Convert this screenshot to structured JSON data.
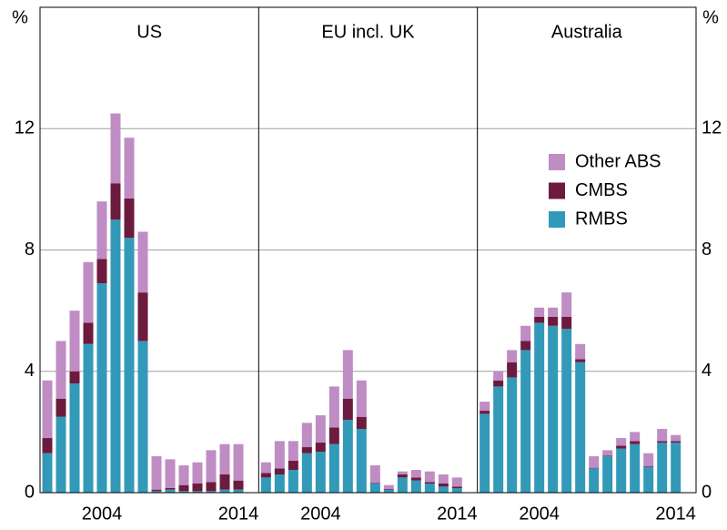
{
  "chart_data": [
    {
      "type": "bar",
      "stacked": true,
      "title": "US",
      "ylabel": "%",
      "categories": [
        null,
        null,
        null,
        null,
        "2004",
        null,
        null,
        null,
        null,
        null,
        null,
        null,
        null,
        null,
        "2014"
      ],
      "series": [
        {
          "name": "RMBS",
          "color": "#3399b8",
          "values": [
            1.3,
            2.5,
            3.6,
            4.9,
            6.9,
            9.0,
            8.4,
            5.0,
            0.05,
            0.1,
            0.05,
            0.05,
            0.05,
            0.1,
            0.1
          ]
        },
        {
          "name": "CMBS",
          "color": "#6d1a3f",
          "values": [
            0.5,
            0.6,
            0.4,
            0.7,
            0.8,
            1.2,
            1.3,
            1.6,
            0.05,
            0.05,
            0.2,
            0.25,
            0.3,
            0.5,
            0.3
          ]
        },
        {
          "name": "Other ABS",
          "color": "#bf8cc4",
          "values": [
            1.9,
            1.9,
            2.0,
            2.0,
            1.9,
            2.3,
            2.0,
            2.0,
            1.1,
            0.95,
            0.65,
            0.7,
            1.05,
            1.0,
            1.2
          ]
        }
      ],
      "ylim": [
        0,
        16
      ],
      "yticks": [
        0,
        4,
        8,
        12
      ],
      "grid": true
    },
    {
      "type": "bar",
      "stacked": true,
      "title": "EU incl. UK",
      "categories": [
        null,
        null,
        null,
        null,
        "2004",
        null,
        null,
        null,
        null,
        null,
        null,
        null,
        null,
        null,
        "2014"
      ],
      "series": [
        {
          "name": "RMBS",
          "color": "#3399b8",
          "values": [
            0.5,
            0.6,
            0.75,
            1.3,
            1.35,
            1.6,
            2.4,
            2.1,
            0.3,
            0.1,
            0.5,
            0.4,
            0.3,
            0.2,
            0.15
          ]
        },
        {
          "name": "CMBS",
          "color": "#6d1a3f",
          "values": [
            0.15,
            0.2,
            0.3,
            0.2,
            0.3,
            0.55,
            0.7,
            0.4,
            0.02,
            0.02,
            0.1,
            0.1,
            0.05,
            0.1,
            0.05
          ]
        },
        {
          "name": "Other ABS",
          "color": "#bf8cc4",
          "values": [
            0.35,
            0.9,
            0.65,
            0.8,
            0.9,
            1.35,
            1.6,
            1.2,
            0.58,
            0.13,
            0.1,
            0.25,
            0.35,
            0.3,
            0.3
          ]
        }
      ],
      "ylim": [
        0,
        16
      ],
      "yticks": [
        0,
        4,
        8,
        12
      ],
      "grid": true
    },
    {
      "type": "bar",
      "stacked": true,
      "title": "Australia",
      "ylabel": "%",
      "legend": "upper right",
      "categories": [
        null,
        null,
        null,
        null,
        "2004",
        null,
        null,
        null,
        null,
        null,
        null,
        null,
        null,
        null,
        "2014"
      ],
      "series": [
        {
          "name": "RMBS",
          "color": "#3399b8",
          "values": [
            2.6,
            3.5,
            3.8,
            4.7,
            5.6,
            5.5,
            5.4,
            4.3,
            0.8,
            1.2,
            1.45,
            1.6,
            0.85,
            1.65,
            1.65
          ]
        },
        {
          "name": "CMBS",
          "color": "#6d1a3f",
          "values": [
            0.1,
            0.2,
            0.5,
            0.3,
            0.2,
            0.3,
            0.4,
            0.1,
            0.02,
            0.02,
            0.1,
            0.1,
            0.02,
            0.05,
            0.05
          ]
        },
        {
          "name": "Other ABS",
          "color": "#bf8cc4",
          "values": [
            0.3,
            0.3,
            0.4,
            0.5,
            0.3,
            0.3,
            0.8,
            0.5,
            0.38,
            0.18,
            0.25,
            0.3,
            0.43,
            0.4,
            0.2
          ]
        }
      ],
      "ylim": [
        0,
        16
      ],
      "yticks": [
        0,
        4,
        8,
        12
      ],
      "grid": true
    }
  ]
}
